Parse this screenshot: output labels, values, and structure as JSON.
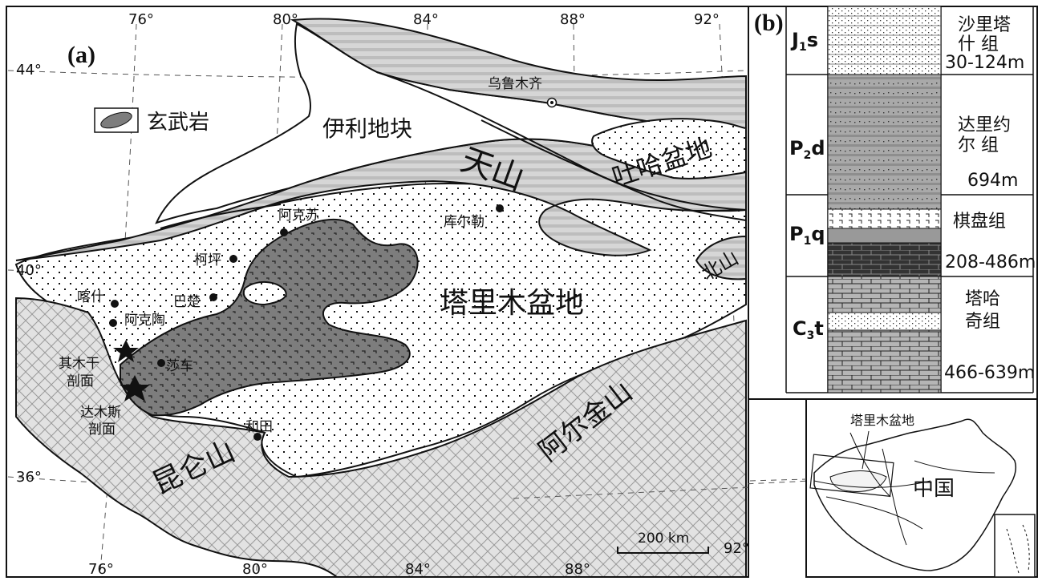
{
  "panel_a": {
    "label": "(a)",
    "lon_top": [
      "76°",
      "80°",
      "84°",
      "88°",
      "92°"
    ],
    "lon_bottom": [
      "76°",
      "80°",
      "84°",
      "88°",
      "92°"
    ],
    "lat": [
      "44°",
      "40°",
      "36°"
    ],
    "legend_basalt": "玄武岩",
    "regions": {
      "yili": "伊利地块",
      "tianshan": "天山",
      "tuha": "吐哈盆地",
      "tarim": "塔里木盆地",
      "kunlun": "昆仑山",
      "altun": "阿尔金山",
      "beishan": "北山"
    },
    "cities": {
      "urumqi": "乌鲁木齐",
      "korla": "库尔勒",
      "aksu": "阿克苏",
      "keping": "柯坪",
      "bachu": "巴楚",
      "kashi": "喀什",
      "aketao": "阿克陶",
      "shache": "莎车",
      "hetian": "和田"
    },
    "sections": {
      "qimugan_1": "其木干",
      "qimugan_2": "剖面",
      "damusi_1": "达木斯",
      "damusi_2": "剖面"
    },
    "scale": "200 km"
  },
  "panel_b": {
    "label": "(b)",
    "units": [
      {
        "code": "J",
        "sub": "1",
        "suffix": "s",
        "name1": "沙里塔",
        "name2": "什  组",
        "thickness": "30-124m"
      },
      {
        "code": "P",
        "sub": "2",
        "suffix": "d",
        "name1": "达里约",
        "name2": "尔  组",
        "thickness": "694m"
      },
      {
        "code": "P",
        "sub": "1",
        "suffix": "q",
        "name1": "棋盘组",
        "name2": "",
        "thickness": "208-486m"
      },
      {
        "code": "C",
        "sub": "3",
        "suffix": "t",
        "name1": "塔哈",
        "name2": "奇组",
        "thickness": "466-639m"
      }
    ]
  },
  "inset": {
    "basin_label": "塔里木盆地",
    "country_label": "中国"
  }
}
